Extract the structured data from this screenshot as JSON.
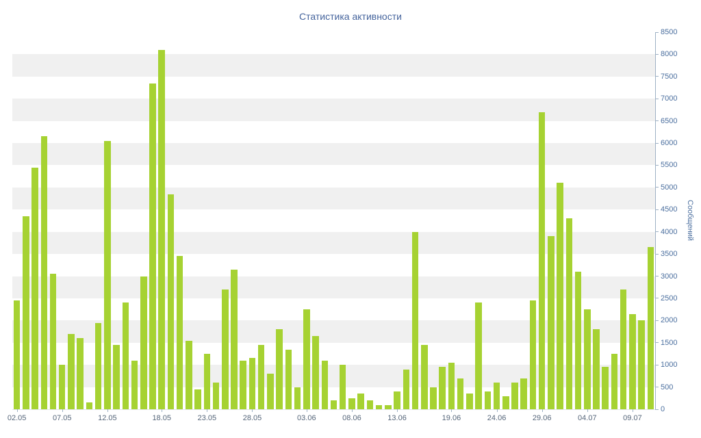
{
  "page": {
    "title": "Статистика активности"
  },
  "chart_data": {
    "type": "bar",
    "title": "Статистика активности",
    "xlabel": "",
    "ylabel": "Сообщений",
    "yaxis_side": "right",
    "legend": "none",
    "grid": "alternating-horizontal-bands",
    "ylim": [
      0,
      8500
    ],
    "ytick_step": 500,
    "ytick_labels": [
      "0",
      "500",
      "1000",
      "1500",
      "2000",
      "2500",
      "3000",
      "3500",
      "4000",
      "4500",
      "5000",
      "5500",
      "6000",
      "6500",
      "7000",
      "7500",
      "8000",
      "8500"
    ],
    "x_tick_labels": [
      "02.05",
      "07.05",
      "12.05",
      "18.05",
      "23.05",
      "28.05",
      "03.06",
      "08.06",
      "13.06",
      "19.06",
      "24.06",
      "29.06",
      "04.07",
      "09.07"
    ],
    "x_tick_indices": [
      0,
      5,
      10,
      16,
      21,
      26,
      32,
      37,
      42,
      48,
      53,
      58,
      63,
      68
    ],
    "values": [
      2450,
      4350,
      5450,
      6150,
      3050,
      1000,
      1700,
      1600,
      150,
      1950,
      6050,
      1450,
      2400,
      1100,
      3000,
      7350,
      8100,
      4850,
      3450,
      1550,
      450,
      1250,
      600,
      2700,
      3150,
      1100,
      1150,
      1450,
      800,
      1800,
      1350,
      500,
      2250,
      1650,
      1100,
      200,
      1000,
      250,
      350,
      200,
      100,
      100,
      400,
      900,
      4000,
      1450,
      500,
      950,
      1050,
      700,
      350,
      2400,
      400,
      600,
      300,
      600,
      700,
      2450,
      6700,
      3900,
      5100,
      4300,
      3100,
      2250,
      1800,
      950,
      1250,
      2700,
      2150,
      2000,
      3650
    ],
    "colors": {
      "bar": "#a6d232",
      "band": "#f0f0f0",
      "title": "#44639c",
      "y_labels": "#4a6e9e",
      "x_labels": "#56667a",
      "y_title": "#4a6e9e",
      "axis_line": "#9db0c4"
    }
  }
}
